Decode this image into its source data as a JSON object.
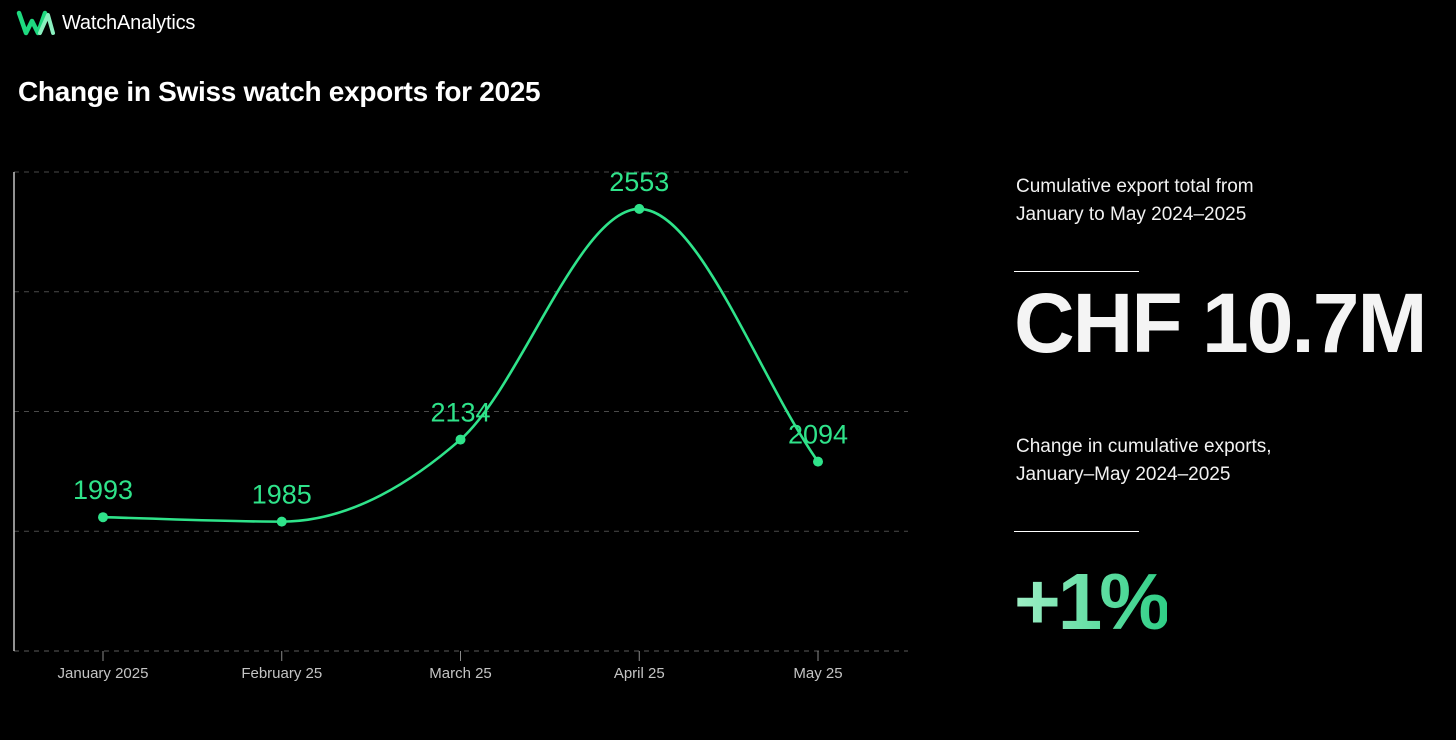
{
  "brand": {
    "name": "WatchAnalytics",
    "logo_icon": "watchanalytics-logo-icon",
    "logo_color": "#1ed97f"
  },
  "chart_title": "Change in Swiss watch exports for 2025",
  "chart_data": {
    "type": "line",
    "title": "Change in Swiss watch exports for 2025",
    "xlabel": "",
    "ylabel": "",
    "categories": [
      "January 2025",
      "February 25",
      "March 25",
      "April 25",
      "May 25"
    ],
    "series": [
      {
        "values": [
          1993,
          1985,
          2134,
          2553,
          2094
        ],
        "color": "#2fe38a"
      }
    ],
    "ylim": [
      1750,
      2620
    ],
    "grid": "horizontal dashed",
    "data_labels": true,
    "smooth": true,
    "legend": "none"
  },
  "stats": [
    {
      "caption": "Cumulative export total from January to May 2024–2025",
      "value": "CHF 10.7M",
      "value_color": "#f4f4f4"
    },
    {
      "caption": "Change in cumulative exports, January–May 2024–2025",
      "value": "+1%",
      "value_gradient": [
        "#9fefc6",
        "#2fcf86"
      ]
    }
  ],
  "colors": {
    "background": "#000000",
    "accent": "#2fe38a",
    "gridline": "#4a4a4a",
    "axis": "#d0d0d0",
    "text": "#ffffff"
  }
}
